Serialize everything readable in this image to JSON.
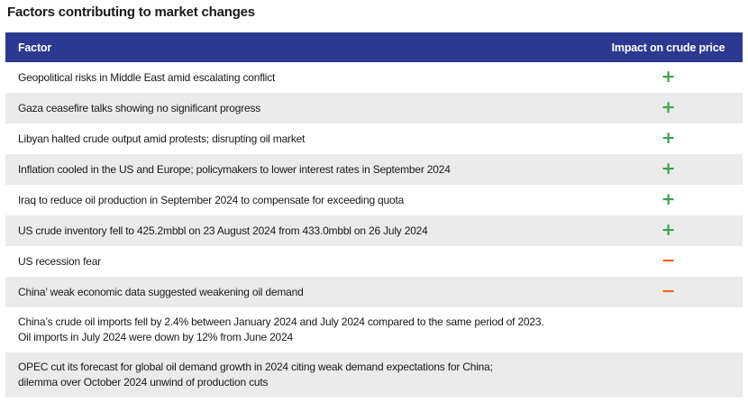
{
  "title": "Factors contributing to market changes",
  "header": {
    "factor": "Factor",
    "impact": "Impact on crude price"
  },
  "colors": {
    "header_bg": "#2b3990",
    "positive": "#3aa44a",
    "negative": "#f26522",
    "stripe": "#ebebeb"
  },
  "symbols": {
    "positive": "+",
    "negative": "−"
  },
  "rows": [
    {
      "factor": "Geopolitical risks in Middle East amid escalating conflict",
      "impact": "positive"
    },
    {
      "factor": "Gaza ceasefire talks showing no significant progress",
      "impact": "positive"
    },
    {
      "factor": "Libyan halted crude output amid protests; disrupting oil market",
      "impact": "positive"
    },
    {
      "factor": "Inflation cooled in the US and Europe; policymakers to lower interest rates in September 2024",
      "impact": "positive"
    },
    {
      "factor": "Iraq to reduce oil production in September 2024 to compensate for exceeding quota",
      "impact": "positive"
    },
    {
      "factor": "US crude inventory fell to 425.2mbbl on 23 August 2024 from 433.0mbbl on 26 July 2024",
      "impact": "positive"
    },
    {
      "factor": "US recession fear",
      "impact": "negative"
    },
    {
      "factor": "China’ weak economic data suggested weakening oil demand",
      "impact": "negative"
    },
    {
      "factor_line1": "China’s crude oil imports fell by 2.4% between January 2024 and July 2024 compared to the same period of 2023.",
      "factor_line2": "Oil imports in July 2024 were down by 12% from June 2024",
      "impact": "none"
    },
    {
      "factor_line1": "OPEC cut its forecast for global oil demand growth in 2024 citing weak demand expectations for China;",
      "factor_line2": "dilemma over October 2024 unwind of production cuts",
      "impact": "none"
    }
  ]
}
